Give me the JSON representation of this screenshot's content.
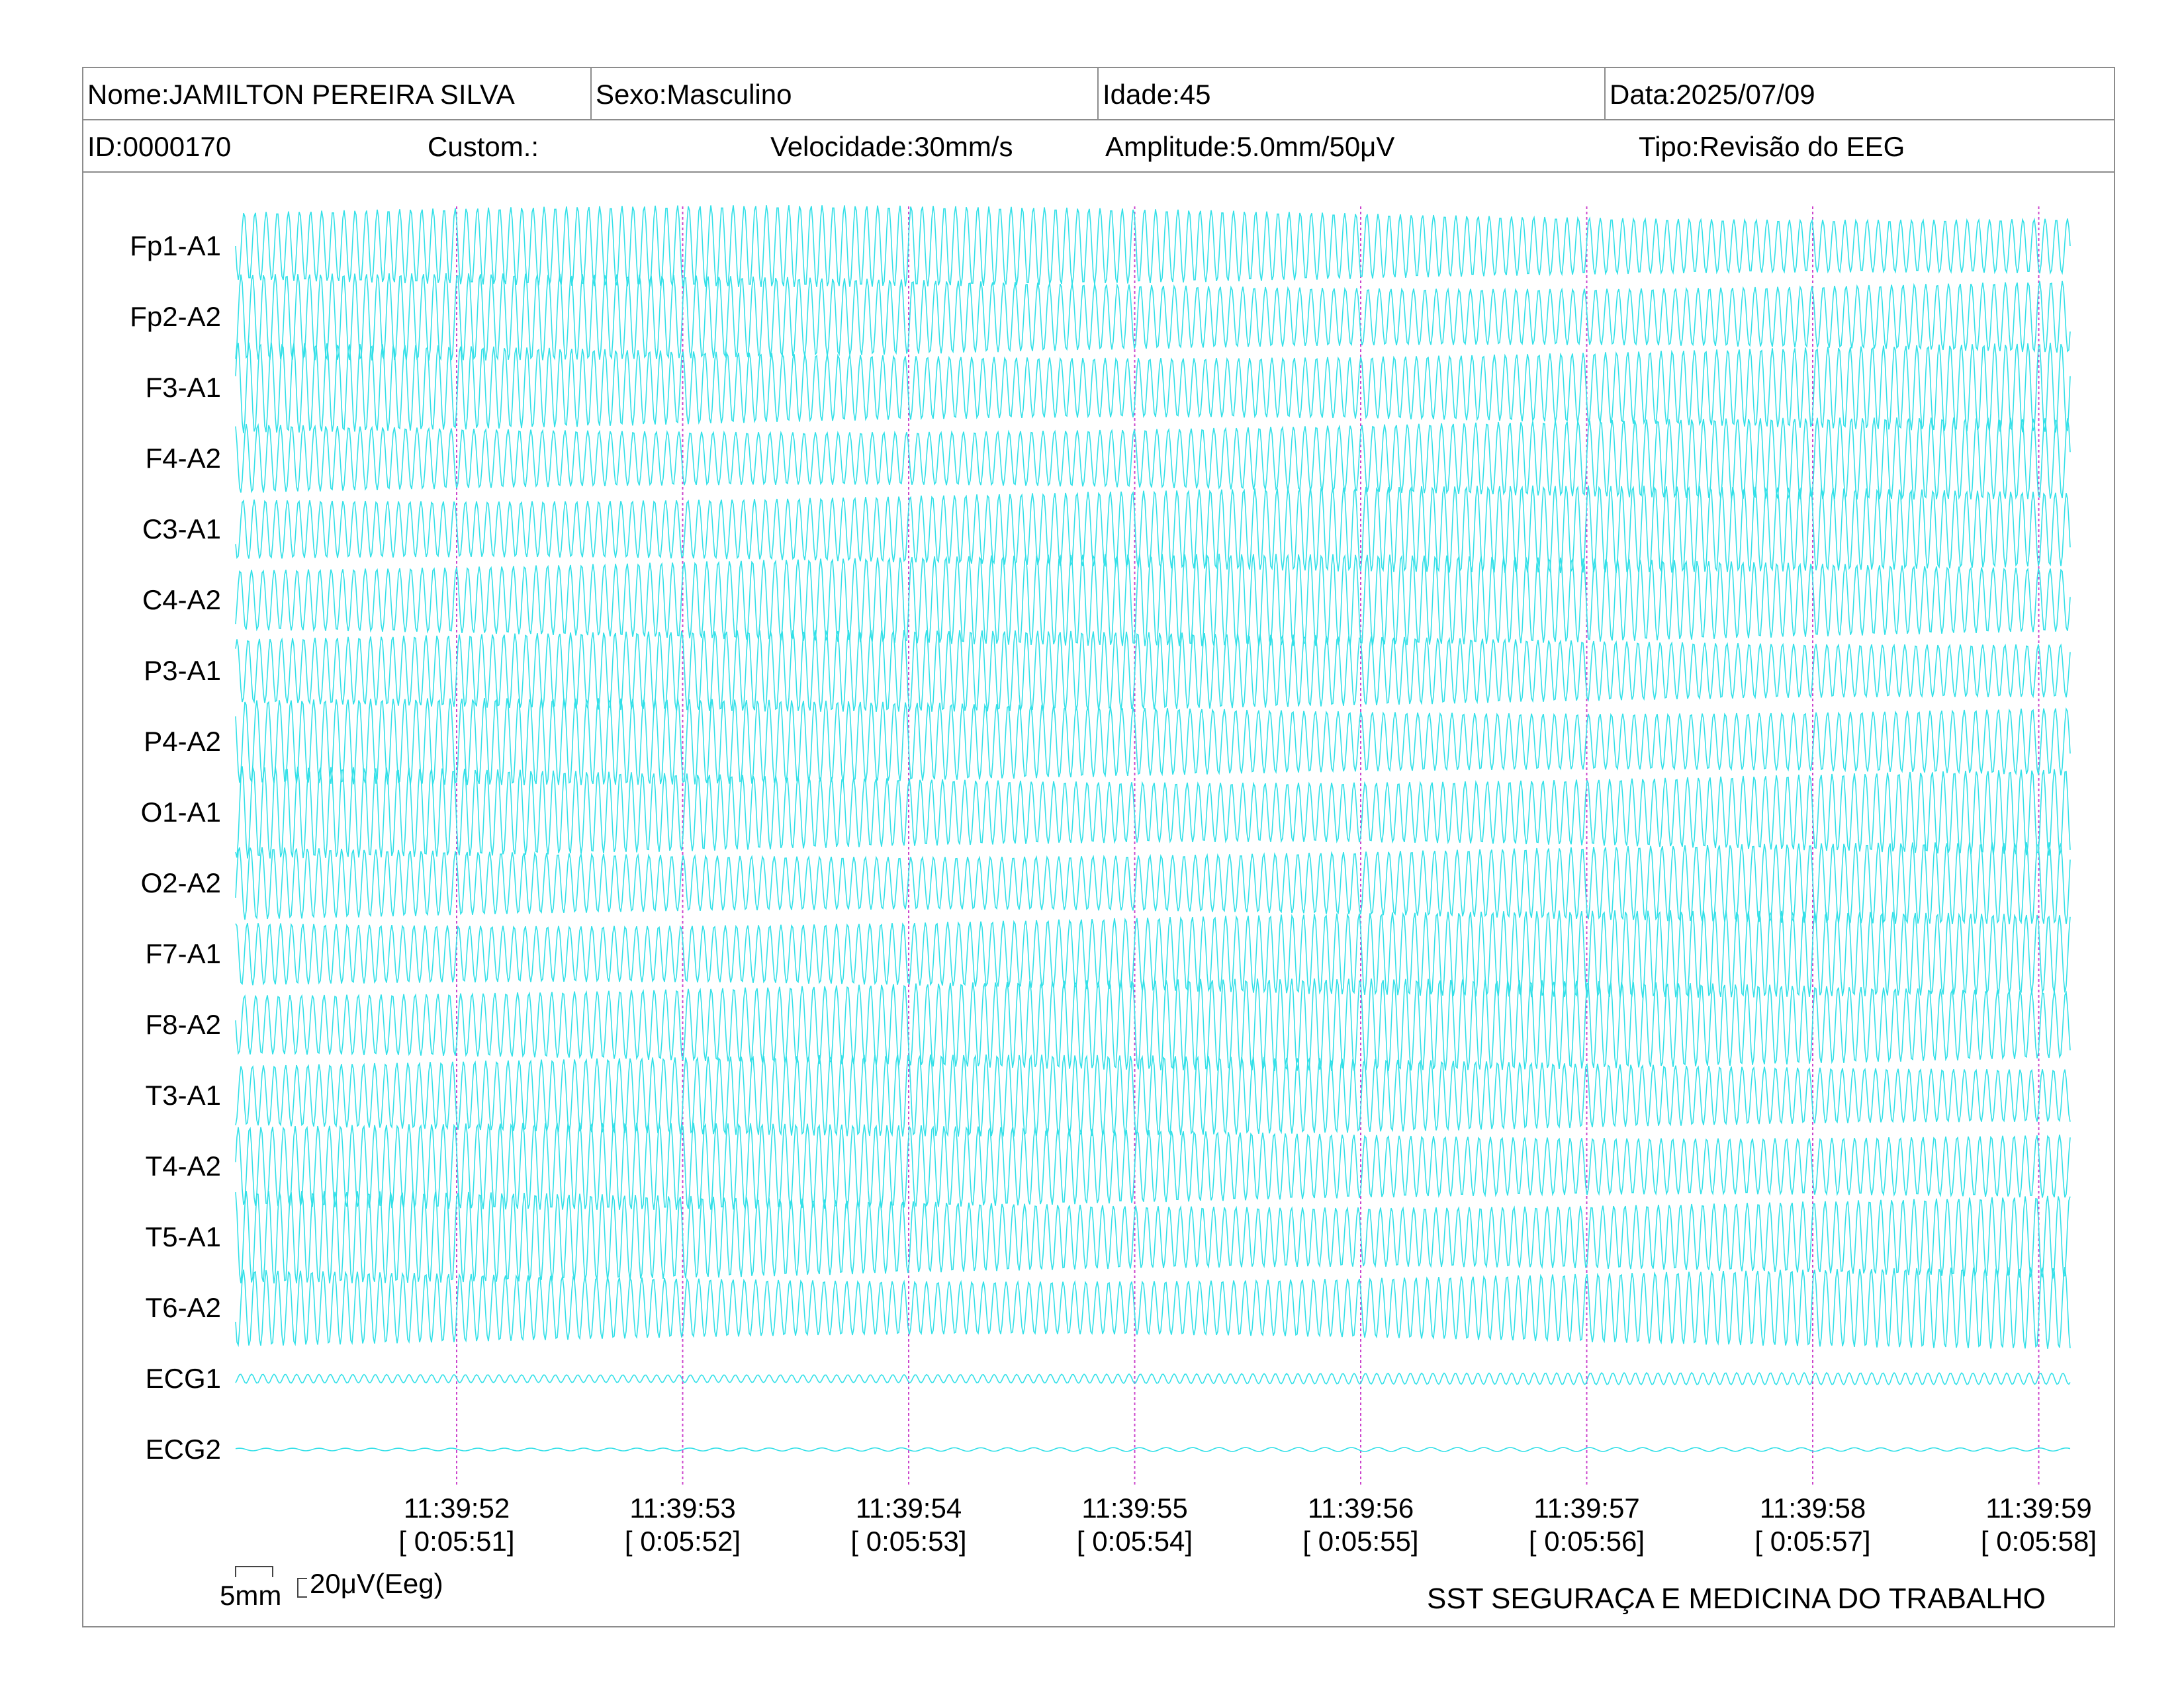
{
  "header": {
    "nome": "Nome:JAMILTON PEREIRA SILVA",
    "sexo": "Sexo:Masculino",
    "idade": "Idade:45",
    "data": "Data:2025/07/09",
    "id": "ID:0000170",
    "custom": "Custom.:",
    "velocidade": "Velocidade:30mm/s",
    "amplitude": "Amplitude:5.0mm/50μV",
    "tipo": "Tipo:Revisão do EEG"
  },
  "channels": [
    "Fp1-A1",
    "Fp2-A2",
    "F3-A1",
    "F4-A2",
    "C3-A1",
    "C4-A2",
    "P3-A1",
    "P4-A2",
    "O1-A1",
    "O2-A2",
    "F7-A1",
    "F8-A2",
    "T3-A1",
    "T4-A2",
    "T5-A1",
    "T6-A2",
    "ECG1",
    "ECG2"
  ],
  "time_marks": [
    {
      "clock": "11:39:52",
      "elapsed": "[ 0:05:51]"
    },
    {
      "clock": "11:39:53",
      "elapsed": "[ 0:05:52]"
    },
    {
      "clock": "11:39:54",
      "elapsed": "[ 0:05:53]"
    },
    {
      "clock": "11:39:55",
      "elapsed": "[ 0:05:54]"
    },
    {
      "clock": "11:39:56",
      "elapsed": "[ 0:05:55]"
    },
    {
      "clock": "11:39:57",
      "elapsed": "[ 0:05:56]"
    },
    {
      "clock": "11:39:58",
      "elapsed": "[ 0:05:57]"
    },
    {
      "clock": "11:39:59",
      "elapsed": "[ 0:05:58]"
    }
  ],
  "scale": {
    "time_label": "5mm",
    "amp_label": "20μV(Eeg)"
  },
  "footer": {
    "organization": "SST SEGURAÇA E MEDICINA DO TRABALHO"
  },
  "colors": {
    "trace": "#33e0e8",
    "time_marker": "#cc44cc",
    "border": "#8c8c8c"
  }
}
